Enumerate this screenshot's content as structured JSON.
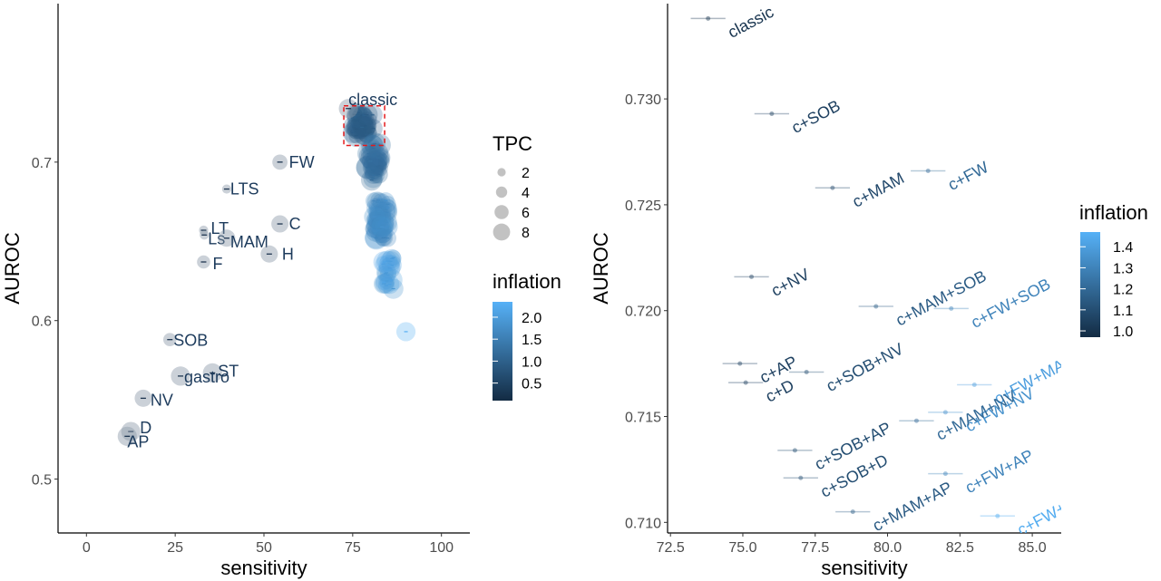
{
  "chart_data": [
    {
      "type": "scatter",
      "panel": "left",
      "xlabel": "sensitivity",
      "ylabel": "AUROC",
      "xlim": [
        -8,
        108
      ],
      "ylim": [
        0.466,
        0.8
      ],
      "xticks": [
        0,
        25,
        50,
        75,
        100
      ],
      "yticks": [
        0.5,
        0.6,
        0.7
      ],
      "grid": false,
      "legend_position": "right",
      "size_legend": {
        "title": "TPC",
        "values": [
          "2",
          "4",
          "6",
          "8"
        ]
      },
      "color_legend": {
        "title": "inflation",
        "ticks": [
          "0.5",
          "1.0",
          "1.5",
          "2.0"
        ],
        "range": [
          0.1,
          2.35
        ],
        "low_color": "#132B43",
        "high_color": "#56B1F7"
      },
      "highlight_box": {
        "x": [
          72.5,
          84
        ],
        "y": [
          0.7105,
          0.7355
        ],
        "color": "#e41a1c",
        "style": "dashed"
      },
      "points": [
        {
          "label": "classic",
          "x": 73.8,
          "y": 0.7338,
          "tpc": 6,
          "inflation": 1.0
        },
        {
          "label": "FW",
          "x": 54.5,
          "y": 0.7,
          "tpc": 4,
          "inflation": 1.0
        },
        {
          "label": "LTS",
          "x": 39.5,
          "y": 0.683,
          "tpc": 1,
          "inflation": 1.0
        },
        {
          "label": "LT",
          "x": 33.0,
          "y": 0.657,
          "tpc": 1,
          "inflation": 1.0
        },
        {
          "label": "Ls",
          "x": 33.2,
          "y": 0.654,
          "tpc": 1,
          "inflation": 1.0
        },
        {
          "label": "MAM",
          "x": 39.5,
          "y": 0.652,
          "tpc": 5,
          "inflation": 1.0
        },
        {
          "label": "C",
          "x": 54.5,
          "y": 0.661,
          "tpc": 5,
          "inflation": 1.0
        },
        {
          "label": "H",
          "x": 51.5,
          "y": 0.642,
          "tpc": 5,
          "inflation": 1.0
        },
        {
          "label": "F",
          "x": 33.0,
          "y": 0.637,
          "tpc": 3,
          "inflation": 1.0
        },
        {
          "label": "SOB",
          "x": 23.5,
          "y": 0.588,
          "tpc": 3,
          "inflation": 1.0
        },
        {
          "label": "ST",
          "x": 35.5,
          "y": 0.567,
          "tpc": 6,
          "inflation": 1.0
        },
        {
          "label": "gastro",
          "x": 26.5,
          "y": 0.565,
          "tpc": 6,
          "inflation": 1.0
        },
        {
          "label": "NV",
          "x": 16.0,
          "y": 0.551,
          "tpc": 5,
          "inflation": 1.0
        },
        {
          "label": "D",
          "x": 12.5,
          "y": 0.53,
          "tpc": 6,
          "inflation": 1.0
        },
        {
          "label": "AP",
          "x": 11.5,
          "y": 0.527,
          "tpc": 6,
          "inflation": 1.0
        }
      ]
    },
    {
      "type": "scatter",
      "panel": "right",
      "xlabel": "sensitivity",
      "ylabel": "AUROC",
      "xlim": [
        72.4,
        86.0
      ],
      "ylim": [
        0.7095,
        0.7345
      ],
      "xticks": [
        "72.5",
        "75.0",
        "77.5",
        "80.0",
        "82.5",
        "85.0"
      ],
      "yticks": [
        "0.710",
        "0.715",
        "0.720",
        "0.725",
        "0.730"
      ],
      "grid": false,
      "legend_position": "right",
      "color_legend": {
        "title": "inflation",
        "ticks": [
          "1.0",
          "1.1",
          "1.2",
          "1.3",
          "1.4"
        ],
        "range": [
          0.97,
          1.47
        ],
        "low_color": "#132B43",
        "high_color": "#56B1F7"
      },
      "points": [
        {
          "label": "classic",
          "x": 73.8,
          "y": 0.7338,
          "xerr": 0.6,
          "inflation": 1.0
        },
        {
          "label": "c+SOB",
          "x": 76.0,
          "y": 0.7293,
          "xerr": 0.6,
          "inflation": 1.05
        },
        {
          "label": "c+MAM",
          "x": 78.1,
          "y": 0.7258,
          "xerr": 0.6,
          "inflation": 1.08
        },
        {
          "label": "c+FW",
          "x": 81.4,
          "y": 0.7266,
          "xerr": 0.6,
          "inflation": 1.2
        },
        {
          "label": "c+NV",
          "x": 75.3,
          "y": 0.7216,
          "xerr": 0.6,
          "inflation": 1.05
        },
        {
          "label": "c+MAM+SOB",
          "x": 79.6,
          "y": 0.7202,
          "xerr": 0.6,
          "inflation": 1.15
        },
        {
          "label": "c+FW+SOB",
          "x": 82.2,
          "y": 0.7201,
          "xerr": 0.6,
          "inflation": 1.3
        },
        {
          "label": "c+AP",
          "x": 74.9,
          "y": 0.7175,
          "xerr": 0.6,
          "inflation": 1.05
        },
        {
          "label": "c+D",
          "x": 75.1,
          "y": 0.7166,
          "xerr": 0.6,
          "inflation": 1.05
        },
        {
          "label": "c+SOB+NV",
          "x": 77.2,
          "y": 0.7171,
          "xerr": 0.6,
          "inflation": 1.1
        },
        {
          "label": "c+FW+MAM",
          "x": 83.0,
          "y": 0.7165,
          "xerr": 0.6,
          "inflation": 1.4
        },
        {
          "label": "c+FW+NV",
          "x": 82.0,
          "y": 0.7152,
          "xerr": 0.6,
          "inflation": 1.35
        },
        {
          "label": "c+MAM+NV",
          "x": 81.0,
          "y": 0.7148,
          "xerr": 0.6,
          "inflation": 1.2
        },
        {
          "label": "c+SOB+AP",
          "x": 76.8,
          "y": 0.7134,
          "xerr": 0.6,
          "inflation": 1.1
        },
        {
          "label": "c+SOB+D",
          "x": 77.0,
          "y": 0.7121,
          "xerr": 0.6,
          "inflation": 1.1
        },
        {
          "label": "c+FW+AP",
          "x": 82.0,
          "y": 0.7123,
          "xerr": 0.6,
          "inflation": 1.3
        },
        {
          "label": "c+MAM+AP",
          "x": 78.8,
          "y": 0.7105,
          "xerr": 0.6,
          "inflation": 1.15
        },
        {
          "label": "c+FW+MAM+",
          "x": 83.8,
          "y": 0.7103,
          "xerr": 0.6,
          "inflation": 1.45
        }
      ]
    }
  ]
}
